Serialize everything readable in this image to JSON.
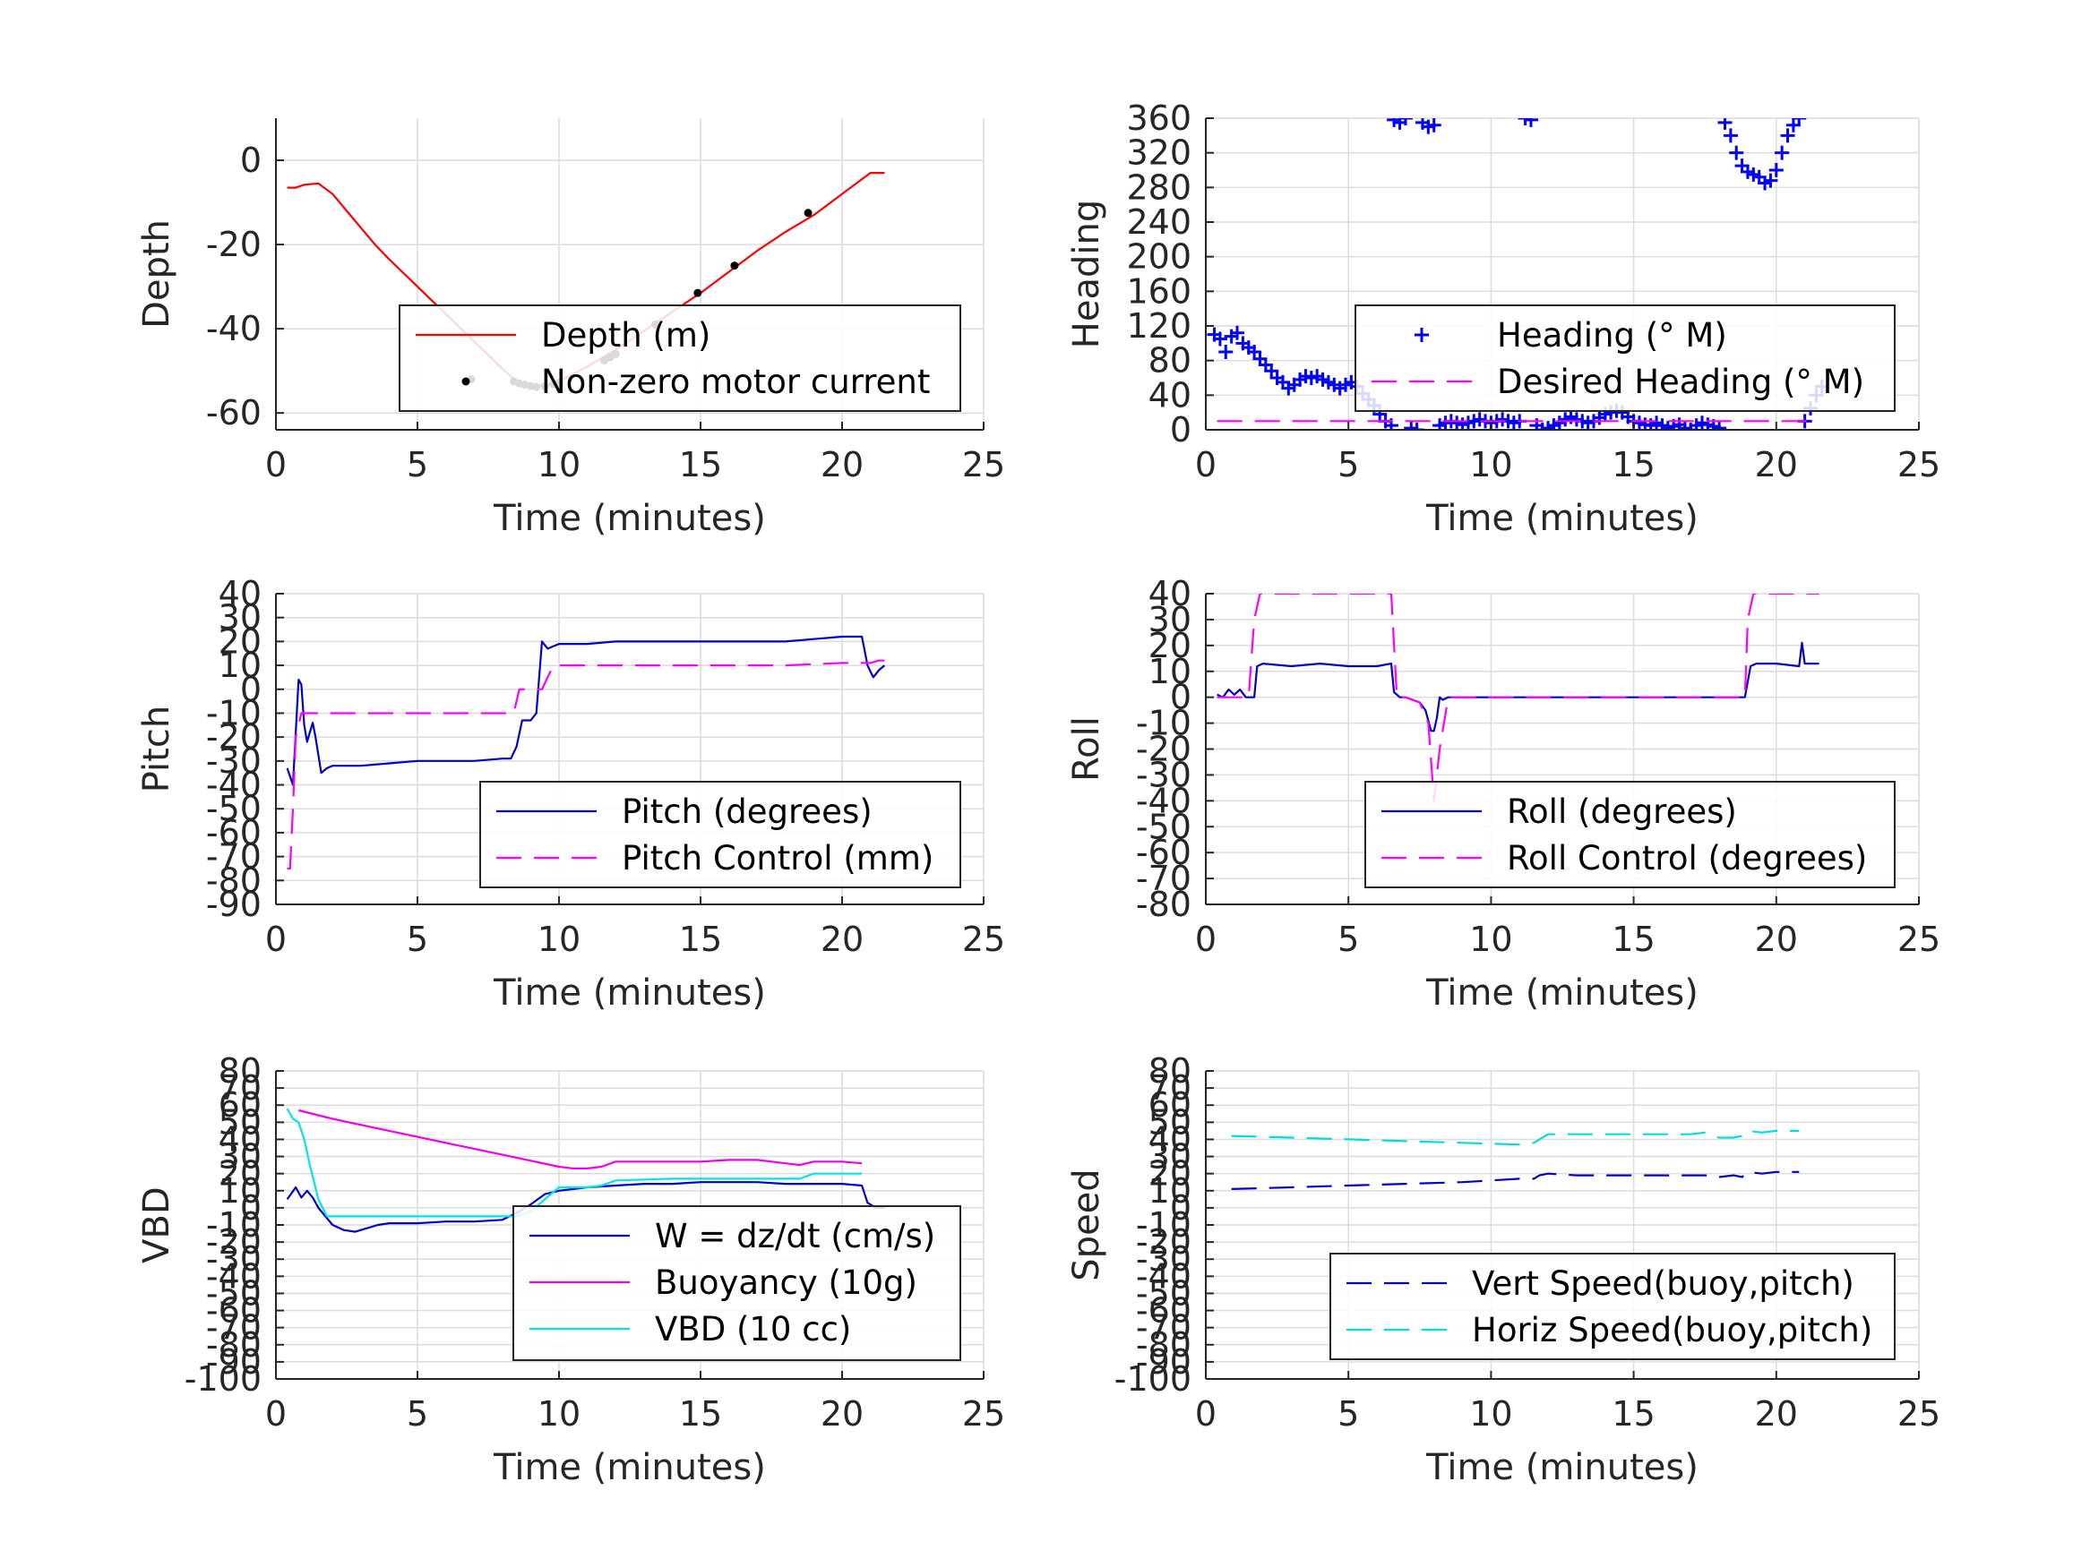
{
  "colors": {
    "axis": "#262626",
    "grid": "#dcdcdc",
    "legend_border": "#262626"
  },
  "chart_data": [
    {
      "type": "line",
      "xlabel": "Time (minutes)",
      "ylabel": "Depth",
      "xlim": [
        0,
        25
      ],
      "ylim": [
        -64,
        10
      ],
      "xticks": [
        0,
        5,
        10,
        15,
        20,
        25
      ],
      "yticks": [
        -60,
        -40,
        -20,
        0
      ],
      "grid": true,
      "legend": "lower-right",
      "series": [
        {
          "name": "Depth (m)",
          "color": "#ff0000",
          "style": "solid",
          "x": [
            0.4,
            0.7,
            1.0,
            1.5,
            2.0,
            2.5,
            3.0,
            3.5,
            4.0,
            5.0,
            6.0,
            7.0,
            8.0,
            8.5,
            9.0,
            9.5,
            10.0,
            11.0,
            12.0,
            13.0,
            14.0,
            15.0,
            16.0,
            17.0,
            18.0,
            19.0,
            20.0,
            21.0,
            21.5
          ],
          "y": [
            -6.5,
            -6.5,
            -5.8,
            -5.5,
            -8,
            -12,
            -16,
            -20,
            -23.5,
            -30,
            -36.5,
            -43,
            -49.5,
            -52.5,
            -53.5,
            -53.5,
            -52.5,
            -49,
            -45,
            -40.5,
            -36,
            -31.5,
            -26.5,
            -21.5,
            -17,
            -13,
            -8,
            -3,
            -3
          ]
        },
        {
          "name": "Non-zero motor current",
          "color": "#000000",
          "style": "dots",
          "x": [
            6.9,
            8.4,
            8.6,
            8.8,
            9.0,
            9.2,
            9.5,
            9.8,
            10.0,
            11.6,
            11.8,
            12.0,
            13.4,
            14.9,
            16.2,
            18.8
          ],
          "y": [
            -52,
            -52.5,
            -53,
            -53.3,
            -53.6,
            -53.8,
            -53.7,
            -53.2,
            -52.8,
            -47.5,
            -46.8,
            -46,
            -39,
            -31.5,
            -25,
            -12.5
          ]
        }
      ]
    },
    {
      "type": "scatter",
      "xlabel": "Time (minutes)",
      "ylabel": "Heading",
      "xlim": [
        0,
        25
      ],
      "ylim": [
        0,
        360
      ],
      "xticks": [
        0,
        5,
        10,
        15,
        20,
        25
      ],
      "yticks": [
        0,
        40,
        80,
        120,
        160,
        200,
        240,
        280,
        320,
        360
      ],
      "grid": true,
      "legend": "lower-right",
      "series": [
        {
          "name": "Heading (° M)",
          "color": "#0000ff",
          "style": "plus",
          "x": [
            0.3,
            0.5,
            0.7,
            0.9,
            1.1,
            1.3,
            1.5,
            1.7,
            1.9,
            2.1,
            2.3,
            2.5,
            2.7,
            2.9,
            3.1,
            3.3,
            3.5,
            3.7,
            3.9,
            4.1,
            4.3,
            4.5,
            4.7,
            4.9,
            5.1,
            5.3,
            5.5,
            5.7,
            5.9,
            6.1,
            6.3,
            6.5,
            6.6,
            6.8,
            7.0,
            7.2,
            7.4,
            7.6,
            7.8,
            8.0,
            8.2,
            8.4,
            8.6,
            8.8,
            9.0,
            9.2,
            9.4,
            9.6,
            9.8,
            10.0,
            10.2,
            10.4,
            10.6,
            10.8,
            11.0,
            11.2,
            11.4,
            11.6,
            11.8,
            12.0,
            12.2,
            12.4,
            12.6,
            12.8,
            13.0,
            13.2,
            13.4,
            13.6,
            13.8,
            14.0,
            14.2,
            14.4,
            14.6,
            14.8,
            15.0,
            15.2,
            15.4,
            15.6,
            15.8,
            16.0,
            16.2,
            16.4,
            16.6,
            16.8,
            17.0,
            17.2,
            17.4,
            17.6,
            17.8,
            18.0,
            18.2,
            18.4,
            18.6,
            18.8,
            19.0,
            19.2,
            19.4,
            19.6,
            19.8,
            20.0,
            20.2,
            20.4,
            20.6,
            20.8,
            21.0,
            21.2,
            21.4,
            21.6
          ],
          "y": [
            110,
            105,
            90,
            108,
            112,
            100,
            95,
            90,
            82,
            75,
            68,
            60,
            55,
            48,
            52,
            58,
            62,
            60,
            62,
            58,
            55,
            52,
            48,
            52,
            55,
            50,
            42,
            35,
            28,
            18,
            10,
            5,
            358,
            355,
            360,
            2,
            0,
            355,
            350,
            352,
            5,
            8,
            10,
            8,
            6,
            8,
            10,
            12,
            10,
            8,
            10,
            12,
            10,
            8,
            10,
            360,
            358,
            5,
            0,
            2,
            5,
            8,
            12,
            15,
            12,
            10,
            8,
            10,
            14,
            18,
            20,
            22,
            20,
            15,
            10,
            8,
            6,
            5,
            8,
            5,
            2,
            4,
            6,
            2,
            0,
            5,
            8,
            6,
            4,
            2,
            355,
            340,
            320,
            305,
            298,
            295,
            292,
            285,
            288,
            300,
            320,
            340,
            352,
            360,
            10,
            25,
            40,
            50
          ]
        },
        {
          "name": "Desired Heading (° M)",
          "color": "#ff00ff",
          "style": "dashed",
          "x": [
            0.4,
            21.4
          ],
          "y": [
            10,
            10
          ]
        }
      ]
    },
    {
      "type": "line",
      "xlabel": "Time (minutes)",
      "ylabel": "Pitch",
      "xlim": [
        0,
        25
      ],
      "ylim": [
        -90,
        40
      ],
      "xticks": [
        0,
        5,
        10,
        15,
        20,
        25
      ],
      "yticks": [
        -90,
        -80,
        -70,
        -60,
        -50,
        -40,
        -30,
        -20,
        -10,
        0,
        10,
        20,
        30,
        40
      ],
      "grid": true,
      "legend": "lower-right",
      "series": [
        {
          "name": "Pitch (degrees)",
          "color": "#0000cc",
          "style": "solid",
          "x": [
            0.4,
            0.6,
            0.8,
            0.9,
            1.0,
            1.1,
            1.2,
            1.3,
            1.4,
            1.6,
            1.8,
            2.0,
            3.0,
            4.0,
            5.0,
            6.0,
            7.0,
            8.0,
            8.3,
            8.5,
            8.7,
            9.0,
            9.2,
            9.4,
            9.6,
            10.0,
            11.0,
            12.0,
            13.0,
            14.0,
            15.0,
            16.0,
            17.0,
            18.0,
            19.0,
            20.0,
            20.7,
            20.9,
            21.1,
            21.3,
            21.5
          ],
          "y": [
            -33,
            -40,
            4,
            2,
            -15,
            -22,
            -18,
            -14,
            -20,
            -35,
            -33,
            -32,
            -32,
            -31,
            -30,
            -30,
            -30,
            -29,
            -29,
            -24,
            -13,
            -13,
            -10,
            20,
            17,
            19,
            19,
            20,
            20,
            20,
            20,
            20,
            20,
            20,
            21,
            22,
            22,
            10,
            5,
            8,
            10
          ]
        },
        {
          "name": "Pitch Control (mm)",
          "color": "#ff00ff",
          "style": "dashed",
          "x": [
            0.4,
            0.5,
            0.6,
            0.7,
            0.9,
            1.1,
            1.3,
            1.5,
            2.0,
            4.0,
            6.0,
            8.0,
            8.4,
            8.6,
            9.0,
            9.4,
            9.8,
            10.0,
            12.0,
            14.0,
            16.0,
            18.0,
            20.0,
            21.0,
            21.3,
            21.5
          ],
          "y": [
            -75,
            -75,
            -50,
            -20,
            -10,
            -10,
            -10,
            -10,
            -10,
            -10,
            -10,
            -10,
            -10,
            0,
            0,
            0,
            10,
            10,
            10,
            10,
            10,
            10,
            11,
            11,
            12,
            12
          ]
        }
      ]
    },
    {
      "type": "line",
      "xlabel": "Time (minutes)",
      "ylabel": "Roll",
      "xlim": [
        0,
        25
      ],
      "ylim": [
        -80,
        40
      ],
      "xticks": [
        0,
        5,
        10,
        15,
        20,
        25
      ],
      "yticks": [
        -80,
        -70,
        -60,
        -50,
        -40,
        -30,
        -20,
        -10,
        0,
        10,
        20,
        30,
        40
      ],
      "grid": true,
      "legend": "lower-right",
      "series": [
        {
          "name": "Roll (degrees)",
          "color": "#0000cc",
          "style": "solid",
          "x": [
            0.4,
            0.6,
            0.8,
            1.0,
            1.2,
            1.4,
            1.7,
            1.8,
            2.0,
            3.0,
            4.0,
            5.0,
            6.0,
            6.5,
            6.6,
            6.8,
            7.0,
            7.5,
            7.7,
            7.9,
            8.0,
            8.1,
            8.2,
            8.3,
            8.5,
            10.0,
            12.0,
            14.0,
            16.0,
            18.0,
            18.9,
            19.1,
            19.3,
            20.0,
            20.8,
            20.9,
            21.0,
            21.5
          ],
          "y": [
            1,
            0,
            3,
            1,
            3,
            0,
            0,
            12,
            13,
            12,
            13,
            12,
            12,
            13,
            2,
            0,
            0,
            -2,
            -5,
            -13,
            -13,
            -8,
            0,
            -1,
            0,
            0,
            0,
            0,
            0,
            0,
            0,
            12,
            13,
            13,
            12,
            21,
            13,
            13
          ]
        },
        {
          "name": "Roll Control (degrees)",
          "color": "#ff00ff",
          "style": "dashed",
          "x": [
            0.4,
            1.5,
            1.7,
            1.9,
            3.0,
            5.0,
            6.5,
            6.7,
            7.0,
            7.5,
            7.8,
            8.0,
            8.2,
            8.5,
            10.0,
            15.0,
            18.5,
            18.9,
            19.0,
            19.2,
            21.5
          ],
          "y": [
            0,
            0,
            30,
            40,
            40,
            40,
            40,
            0,
            0,
            -2,
            -10,
            -40,
            -20,
            0,
            0,
            0,
            0,
            0,
            30,
            40,
            40
          ]
        }
      ]
    },
    {
      "type": "line",
      "xlabel": "Time (minutes)",
      "ylabel": "VBD",
      "xlim": [
        0,
        25
      ],
      "ylim": [
        -100,
        80
      ],
      "xticks": [
        0,
        5,
        10,
        15,
        20,
        25
      ],
      "yticks": [
        -100,
        -90,
        -80,
        -70,
        -60,
        -50,
        -40,
        -30,
        -20,
        -10,
        0,
        10,
        20,
        30,
        40,
        50,
        60,
        70,
        80
      ],
      "ytick_labels": [
        "-100",
        "-90",
        "-80",
        "-70",
        "-60",
        "-50",
        "-40",
        "-30",
        "-20",
        "-10",
        "0",
        "10",
        "20",
        "30",
        "40",
        "50",
        "60",
        "70",
        "80"
      ],
      "grid": true,
      "legend": "lower-right",
      "series": [
        {
          "name": "W = dz/dt (cm/s)",
          "color": "#0000cc",
          "style": "solid",
          "x": [
            0.4,
            0.7,
            0.9,
            1.1,
            1.3,
            1.5,
            1.7,
            2.0,
            2.4,
            2.8,
            3.2,
            3.6,
            4.0,
            5.0,
            6.0,
            7.0,
            8.0,
            8.5,
            9.0,
            9.5,
            10.0,
            10.5,
            11.0,
            12.0,
            13.0,
            14.0,
            15.0,
            16.0,
            17.0,
            18.0,
            19.0,
            20.0,
            20.7,
            20.9,
            21.2,
            21.5
          ],
          "y": [
            5,
            12,
            6,
            10,
            6,
            0,
            -4,
            -10,
            -13,
            -14,
            -12,
            -10,
            -9,
            -9,
            -8,
            -8,
            -7,
            -3,
            2,
            8,
            10,
            11,
            12,
            13,
            14,
            14,
            15,
            15,
            15,
            14,
            14,
            14,
            13,
            3,
            0,
            0
          ]
        },
        {
          "name": "Buoyancy (10g)",
          "color": "#ee00ee",
          "style": "solid",
          "x": [
            0.8,
            2.0,
            4.0,
            6.0,
            8.0,
            10.0,
            10.5,
            11.0,
            11.5,
            12.0,
            13.0,
            14.0,
            15.0,
            16.0,
            17.0,
            18.0,
            18.5,
            19.0,
            20.0,
            20.7
          ],
          "y": [
            57,
            52,
            45,
            38,
            31,
            24,
            23,
            23,
            24,
            27,
            27,
            27,
            27,
            28,
            28,
            26,
            25,
            27,
            27,
            26
          ]
        },
        {
          "name": "VBD (10 cc)",
          "color": "#00e5e5",
          "style": "solid",
          "x": [
            0.4,
            0.6,
            0.8,
            1.0,
            1.2,
            1.5,
            1.8,
            2.0,
            4.0,
            6.0,
            8.0,
            8.5,
            9.0,
            10.0,
            11.0,
            11.5,
            12.0,
            14.0,
            16.0,
            18.0,
            18.5,
            19.0,
            20.0,
            20.7
          ],
          "y": [
            58,
            52,
            50,
            40,
            25,
            5,
            -5,
            -5,
            -5,
            -5,
            -5,
            -5,
            -2,
            12,
            12,
            13,
            16,
            17,
            17,
            17,
            17,
            20,
            20,
            20
          ]
        }
      ]
    },
    {
      "type": "line",
      "xlabel": "Time (minutes)",
      "ylabel": "Speed",
      "xlim": [
        0,
        25
      ],
      "ylim": [
        -100,
        80
      ],
      "xticks": [
        0,
        5,
        10,
        15,
        20,
        25
      ],
      "yticks": [
        -100,
        -90,
        -80,
        -70,
        -60,
        -50,
        -40,
        -30,
        -20,
        -10,
        0,
        10,
        20,
        30,
        40,
        50,
        60,
        70,
        80
      ],
      "ytick_labels": [
        "-100",
        "-90",
        "-80",
        "-70",
        "-60",
        "-50",
        "-40",
        "-30",
        "-20",
        "-10",
        "0",
        "10",
        "20",
        "30",
        "40",
        "50",
        "60",
        "70",
        "80"
      ],
      "grid": true,
      "legend": "lower-right",
      "series": [
        {
          "name": "Vert Speed(buoy,pitch)",
          "color": "#0000cc",
          "style": "dashed",
          "x": [
            0.9,
            3.0,
            5.0,
            7.0,
            9.0,
            11.0,
            11.5,
            11.7,
            12.0,
            13.0,
            14.0,
            15.0,
            16.0,
            17.0,
            17.5,
            18.0,
            18.5,
            18.8,
            19.0,
            19.5,
            20.0,
            20.8
          ],
          "y": [
            11,
            12,
            13,
            14,
            15,
            17,
            17,
            19,
            20,
            19,
            19,
            19,
            19,
            19,
            19,
            18,
            19,
            18,
            21,
            20,
            21,
            21
          ]
        },
        {
          "name": "Horiz Speed(buoy,pitch)",
          "color": "#00dddd",
          "style": "dashed",
          "x": [
            0.9,
            3.0,
            5.0,
            7.0,
            9.0,
            11.0,
            11.5,
            11.7,
            12.0,
            13.0,
            14.0,
            15.0,
            16.0,
            17.0,
            17.5,
            18.0,
            18.5,
            18.8,
            19.0,
            19.5,
            20.0,
            20.8
          ],
          "y": [
            42,
            41,
            40,
            39,
            38,
            37,
            38,
            40,
            43,
            43,
            43,
            43,
            43,
            43,
            44,
            41,
            41,
            42,
            45,
            44,
            45,
            45
          ]
        }
      ]
    }
  ]
}
